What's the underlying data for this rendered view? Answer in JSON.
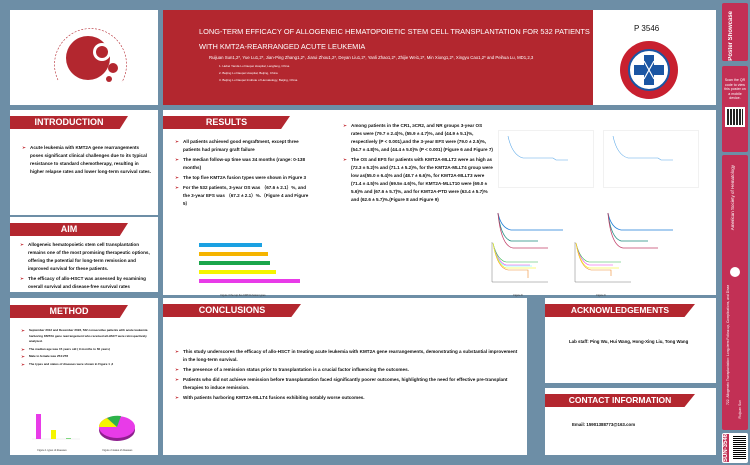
{
  "header": {
    "title_line1": "LONG-TERM EFFICACY OF ALLOGENEIC HEMATOPOIETIC STEM CELL TRANSPLANTATION FOR 532 PATIENTS",
    "title_line2": "WITH KMT2A-REARRANGED ACUTE LEUKEMIA",
    "authors": "Ruijuan Sun1,2*, Yue Lu1,2*, Jian-Ping Zhang1,2*, Jiarui Zhou1,2*, Deyan Liu1,2*, Yanli Zhao1,2*, Zhijie Wei1,2*, Min Xiong1,2*, Xingyu Cao1,2* and Peihua Lu, MD1,2,3",
    "affiliations": [
      "1. Hebei Yanda Lu Daopei Hospital, Langfang, China",
      "2. Beijing Lu Daopei Hospital, Beijing, China",
      "3. Beijing Lu Daopei Institute of Hematology, Beijing, China"
    ],
    "poster_number": "P 3546",
    "society_logo": "AMERICAN SOCIETY OF HEMATOLOGY",
    "hospital_logo": "LUDAOPEI MEDICAL GROUP"
  },
  "colors": {
    "accent": "#b3272f",
    "background": "#6d8ea6",
    "sidebar": "#c23055"
  },
  "introduction": {
    "title": "INTRODUCTION",
    "bullets": [
      "Acute leukemia with KMT2A gene rearrangements poses significant clinical challenges due to its typical resistance to standard chemotherapy, resulting in higher relapse rates and lower long-term survival rates."
    ]
  },
  "aim": {
    "title": "AIM",
    "bullets": [
      "Allogeneic hematopoietic stem cell transplantation remains one of the most promising therapeutic options, offering the potential for long-term remission and improved survival for these patients.",
      "The efficacy of allo-HSCT was assessed by examining overall survival and disease-free survival rates"
    ]
  },
  "method": {
    "title": "METHOD",
    "bullets": [
      "September 2012 and December 2023, 532 consecutive patients with acute leukemia harboring KMT2A gene rearrangement who received all-HSCT were retrospectively analyzed.",
      "The median age was 15 years old ( 9 months to 60 years)",
      "Male to female was 254:278",
      "The types and states of diseases were shown in Figure 1 ,2"
    ],
    "fig1_caption": "Figure 1 types of diseases",
    "fig2_caption": "Figure 2 states of diseases"
  },
  "results": {
    "title": "RESULTS",
    "col1": [
      "All patients achieved good engraftment, except three patients had primary graft failure",
      "The median follow-up time was 34 months (range: 0-138 months)",
      "The top five KMT2A fusion types were shown in Figure 3",
      "For the 532 patients, 3-year OS was （67.6 ± 2.1）%, and the 3-year EFS was （67.2 ± 2.1）%.（Figure 4 and Figure 5）"
    ],
    "col2": [
      "Among patients in the CR1, ≥CR2, and NR groups 3-year OS rates were (79.7 ± 2.4)%, (55.9 ± 4.7)%, and (44.9 ± 5.1)%, respectively (P < 0.001),and the 3-year EFS were (79.0 ± 2.5)%, (54.7 ± 4.8)%, and (44.4 ± 5.0)% (P < 0.001) (Figure 6 and Figure 7)",
      "The OS and EFS for patients with KMT2A-MLLT2 were as high as (72.3 ± 5.2)% and (71.1 ± 5.2)%, for the KMT2A-MLLT4 group were low as(55.0 ± 6.4)% and (48.7 ± 6.6)%, for KMT2A-MLLT3 were (71.4 ± 4.5)% and (69.5± 4.6)%, for KMT2A-MLLT10 were (69.0 ± 5.6)% and (67.6 ± 5.7)%, and for KMT2A-PTD were (63.4 ± 5.7)% and (62.6 ± 5.7)%.(Figure 8 and Figure 9)"
    ],
    "fig3_caption": "Figure 3 the top five KMT2A fusion types",
    "fig8_caption": "Figure 8",
    "fig9_caption": "Figure 9"
  },
  "conclusions": {
    "title": "CONCLUSIONS",
    "bullets": [
      "This study underscores the efficacy of allo-HSCT in treating acute leukemia with KMT2A gene rearrangements, demonstrating a substantial improvement in the long-term survival.",
      "The presence of a remission status prior to transplantation is a crucial factor influencing the outcomes.",
      "Patients who did not achieve remission before transplantation faced significantly poorer outcomes, highlighting the need for effective pre-transplant therapies to induce remission.",
      "With patients harboring KMT2A-MLLT4 fusions exhibiting notably worse outcomes."
    ]
  },
  "acknowledgements": {
    "title": "ACKNOWLEDGEMENTS",
    "text": "Lab staff:  Ping Wu, Hui Wang, Hong-Xing Liu, Tong Wang"
  },
  "contact": {
    "title": "CONTACT INFORMATION",
    "text": "Email: 15901388773@163.com"
  },
  "sidebar": {
    "showcase": "Poster Showcase",
    "qr_text": "Scan the QR code to view this poster on a mobile device.",
    "society": "American Society of Hematology",
    "session": "722. Allogeneic Transplantation: Long-term Follow-up, Complications, and Disease Recurrence: Poster II",
    "author": "Ruijuan Sun",
    "code": "SUN-3546"
  }
}
